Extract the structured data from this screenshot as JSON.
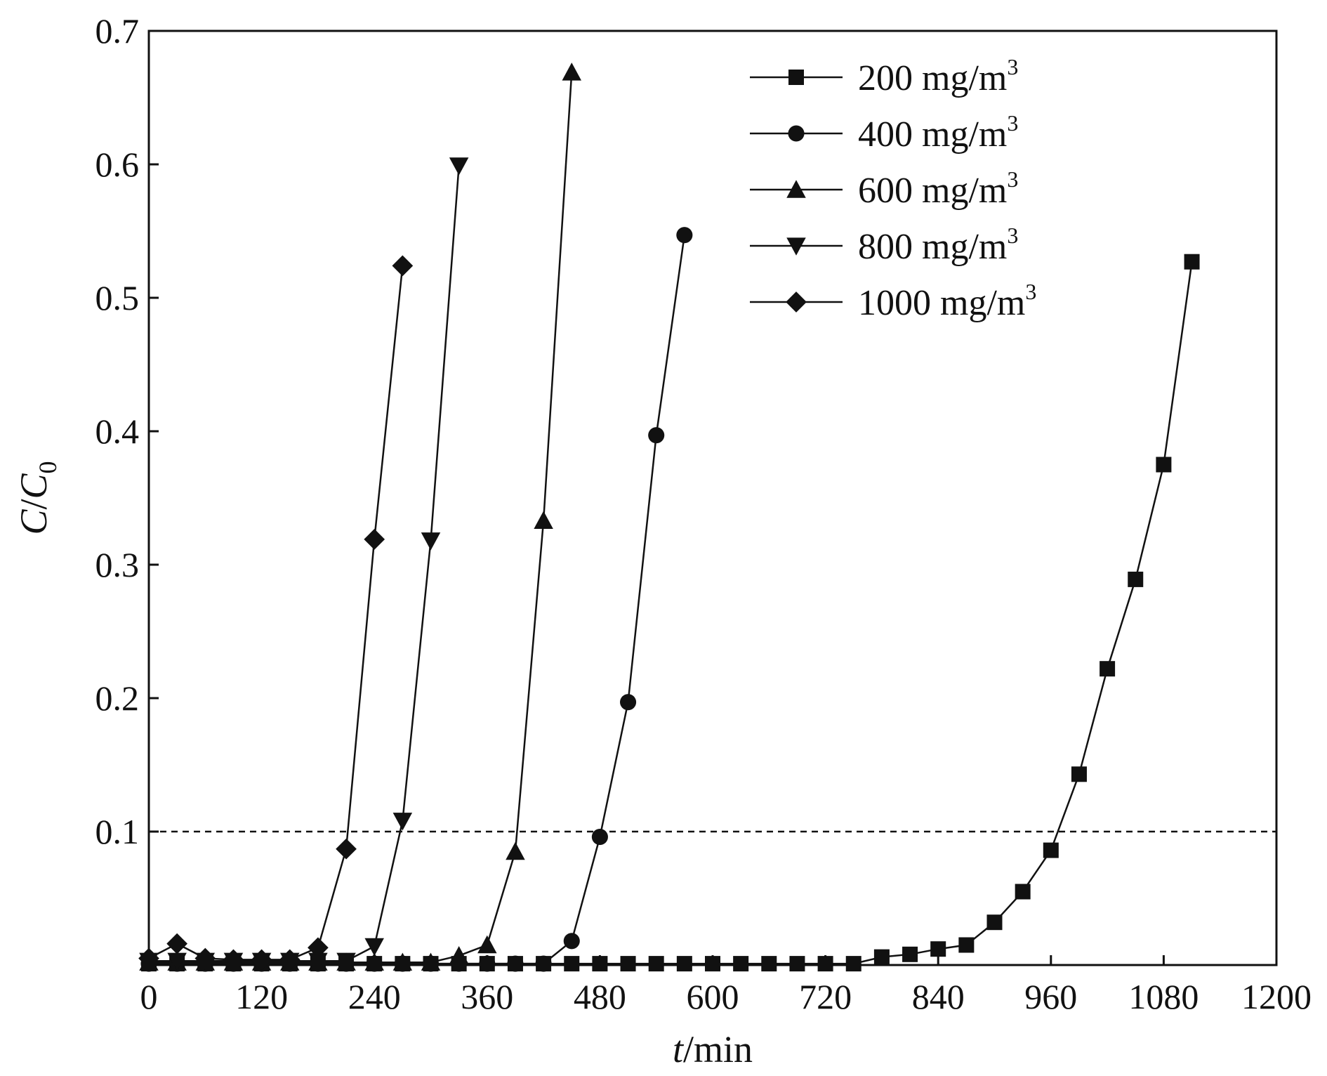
{
  "chart_data": {
    "type": "line",
    "title": "",
    "xlabel": {
      "italic": "t",
      "rest": "/min"
    },
    "ylabel": {
      "part1": "C",
      "slash": "/",
      "part2": "C",
      "subscript": "0"
    },
    "xlim": [
      0,
      1200
    ],
    "ylim": [
      0,
      0.7
    ],
    "xticks": [
      0,
      120,
      240,
      360,
      480,
      600,
      720,
      840,
      960,
      1080,
      1200
    ],
    "yticks": [
      0.1,
      0.2,
      0.3,
      0.4,
      0.5,
      0.6,
      0.7
    ],
    "xtick_labels": [
      "0",
      "120",
      "240",
      "360",
      "480",
      "600",
      "720",
      "840",
      "960",
      "1080",
      "1200"
    ],
    "ytick_labels": [
      "0.1",
      "0.2",
      "0.3",
      "0.4",
      "0.5",
      "0.6",
      "0.7"
    ],
    "grid": false,
    "legend_position": "top-right",
    "reference_line": {
      "y": 0.1,
      "style": "dashed"
    },
    "series": [
      {
        "name": "200 mg/m",
        "superscript": "3",
        "marker": "square",
        "x": [
          0,
          30,
          60,
          90,
          120,
          150,
          180,
          210,
          240,
          270,
          300,
          330,
          360,
          390,
          420,
          450,
          480,
          510,
          540,
          570,
          600,
          630,
          660,
          690,
          720,
          750,
          780,
          810,
          840,
          870,
          900,
          930,
          960,
          990,
          1020,
          1050,
          1080,
          1110
        ],
        "y": [
          0.001,
          0.001,
          0.001,
          0.001,
          0.001,
          0.001,
          0.001,
          0.001,
          0.001,
          0.001,
          0.001,
          0.001,
          0.001,
          0.001,
          0.001,
          0.001,
          0.001,
          0.001,
          0.001,
          0.001,
          0.001,
          0.001,
          0.001,
          0.001,
          0.001,
          0.001,
          0.006,
          0.008,
          0.012,
          0.015,
          0.032,
          0.055,
          0.086,
          0.143,
          0.222,
          0.289,
          0.375,
          0.527
        ]
      },
      {
        "name": "400 mg/m",
        "superscript": "3",
        "marker": "circle",
        "x": [
          0,
          30,
          60,
          90,
          120,
          150,
          180,
          210,
          240,
          270,
          300,
          330,
          360,
          390,
          420,
          450,
          480,
          510,
          540,
          570
        ],
        "y": [
          0.001,
          0.001,
          0.001,
          0.001,
          0.001,
          0.001,
          0.001,
          0.001,
          0.001,
          0.001,
          0.001,
          0.001,
          0.001,
          0.001,
          0.001,
          0.018,
          0.096,
          0.197,
          0.397,
          0.547
        ]
      },
      {
        "name": "600 mg/m",
        "superscript": "3",
        "marker": "triangle-up",
        "x": [
          0,
          30,
          60,
          90,
          120,
          150,
          180,
          210,
          240,
          270,
          300,
          330,
          360,
          390,
          420,
          450
        ],
        "y": [
          0.002,
          0.002,
          0.002,
          0.002,
          0.002,
          0.002,
          0.002,
          0.002,
          0.002,
          0.002,
          0.002,
          0.007,
          0.015,
          0.085,
          0.333,
          0.669
        ]
      },
      {
        "name": "800 mg/m",
        "superscript": "3",
        "marker": "triangle-down",
        "x": [
          0,
          30,
          60,
          90,
          120,
          150,
          180,
          210,
          240,
          270,
          300,
          330
        ],
        "y": [
          0.003,
          0.003,
          0.003,
          0.003,
          0.003,
          0.003,
          0.003,
          0.003,
          0.014,
          0.108,
          0.318,
          0.599
        ]
      },
      {
        "name": "1000 mg/m",
        "superscript": "3",
        "marker": "diamond",
        "x": [
          0,
          30,
          60,
          90,
          120,
          150,
          180,
          210,
          240,
          270
        ],
        "y": [
          0.005,
          0.016,
          0.005,
          0.004,
          0.004,
          0.004,
          0.013,
          0.087,
          0.319,
          0.524
        ]
      }
    ]
  }
}
